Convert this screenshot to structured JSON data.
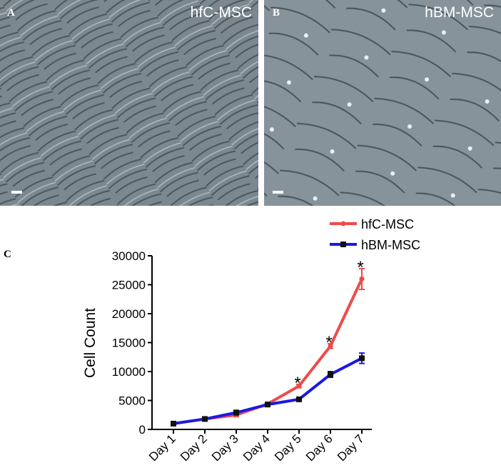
{
  "panels": [
    {
      "label": "A",
      "title": "hfC-MSC"
    },
    {
      "label": "B",
      "title": "hBM-MSC"
    }
  ],
  "chart_label": "C",
  "chart_data": {
    "type": "line",
    "ylabel": "Cell Count",
    "categories": [
      "Day 1",
      "Day 2",
      "Day 3",
      "Day 4",
      "Day 5",
      "Day 6",
      "Day 7"
    ],
    "series": [
      {
        "name": "hfC-MSC",
        "color": "#f04a4a",
        "values": [
          1000,
          1800,
          2500,
          4400,
          7500,
          14400,
          26000
        ],
        "errors": [
          200,
          200,
          300,
          200,
          300,
          400,
          1800
        ]
      },
      {
        "name": "hBM-MSC",
        "color": "#1a1ae0",
        "values": [
          1000,
          1800,
          2900,
          4300,
          5200,
          9500,
          12300
        ],
        "errors": [
          200,
          300,
          400,
          200,
          300,
          500,
          900
        ]
      }
    ],
    "annotations": [
      {
        "text": "*",
        "category": 4
      },
      {
        "text": "*",
        "category": 5
      },
      {
        "text": "*",
        "category": 6
      }
    ],
    "ylim": [
      0,
      30000
    ],
    "yticks": [
      0,
      5000,
      10000,
      15000,
      20000,
      25000,
      30000
    ]
  }
}
